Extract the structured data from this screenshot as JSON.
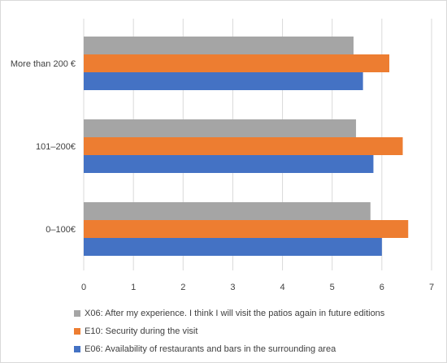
{
  "chart_data": {
    "type": "bar",
    "orientation": "horizontal",
    "categories": [
      "More than 200 €",
      "101–200€",
      "0–100€"
    ],
    "series": [
      {
        "name": "X06: After my experience. I think I will visit the patios again in future editions",
        "color": "#a5a5a5",
        "values": [
          5.43,
          5.48,
          5.77
        ]
      },
      {
        "name": "E10: Security during the visit",
        "color": "#ed7d31",
        "values": [
          6.15,
          6.42,
          6.53
        ]
      },
      {
        "name": "E06: Availability of restaurants and bars in the surrounding area",
        "color": "#4472c4",
        "values": [
          5.62,
          5.83,
          6.0
        ]
      }
    ],
    "xlim": [
      0,
      7
    ],
    "xticks": [
      "0",
      "1",
      "2",
      "3",
      "4",
      "5",
      "6",
      "7"
    ],
    "grid": true,
    "legend_position": "bottom",
    "legend_order": [
      0,
      1,
      2
    ]
  }
}
